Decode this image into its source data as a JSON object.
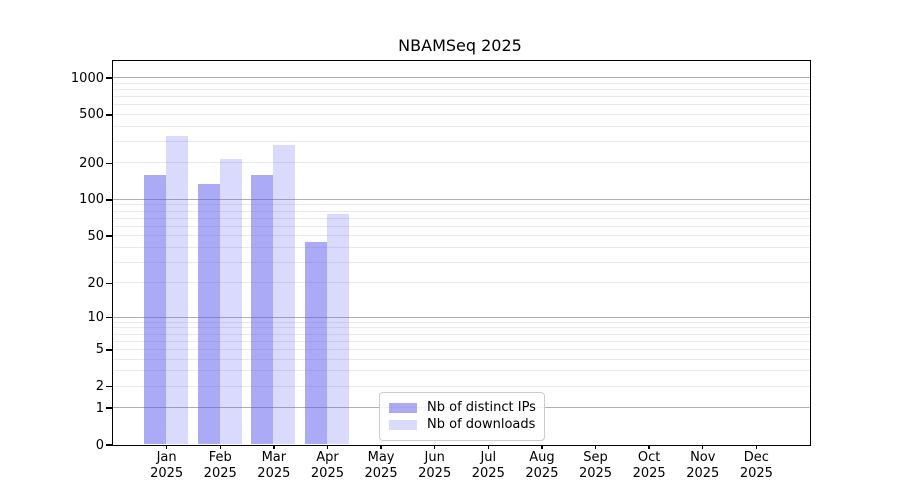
{
  "chart_data": {
    "type": "bar",
    "title": "NBAMSeq 2025",
    "categories": [
      "Jan 2025",
      "Feb 2025",
      "Mar 2025",
      "Apr 2025",
      "May 2025",
      "Jun 2025",
      "Jul 2025",
      "Aug 2025",
      "Sep 2025",
      "Oct 2025",
      "Nov 2025",
      "Dec 2025"
    ],
    "series": [
      {
        "name": "Nb of distinct IPs",
        "color": "rgba(85,85,240,0.5)",
        "values": [
          160,
          135,
          160,
          44,
          0,
          0,
          0,
          0,
          0,
          0,
          0,
          0
        ]
      },
      {
        "name": "Nb of downloads",
        "color": "rgba(85,85,240,0.22)",
        "values": [
          335,
          215,
          280,
          76,
          0,
          0,
          0,
          0,
          0,
          0,
          0,
          0
        ]
      }
    ],
    "xlabel": "",
    "ylabel": "",
    "yscale": "log1p",
    "ylim": [
      0,
      1380
    ],
    "y_ticks": [
      0,
      1,
      2,
      5,
      10,
      20,
      50,
      100,
      200,
      500,
      1000
    ],
    "grid": {
      "orientation": "horizontal",
      "major_values": [
        1,
        10,
        100,
        1000
      ],
      "major_color": "#b0b0b0",
      "minor_color": "#e9e9e9",
      "minor_on": true
    },
    "legend": {
      "position": "lower center"
    }
  }
}
